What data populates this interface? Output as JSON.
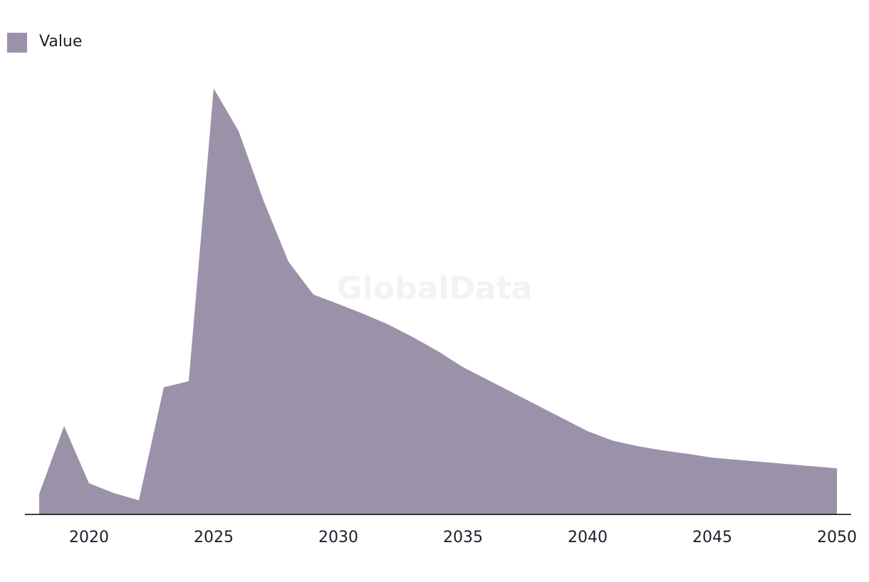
{
  "chart_data": {
    "type": "area",
    "watermark": "GlobalData",
    "x": [
      2018,
      2019,
      2020,
      2021,
      2022,
      2023,
      2024,
      2025,
      2026,
      2027,
      2028,
      2029,
      2030,
      2031,
      2032,
      2033,
      2034,
      2035,
      2036,
      2037,
      2038,
      2039,
      2040,
      2041,
      2042,
      2043,
      2044,
      2045,
      2046,
      2047,
      2048,
      2049,
      2050
    ],
    "series": [
      {
        "name": "Value",
        "color": "#9b92aa",
        "values": [
          4.8,
          20.7,
          7.3,
          5,
          3.3,
          29.8,
          31.2,
          99.8,
          89.8,
          73.5,
          59.2,
          51.5,
          49.3,
          47,
          44.5,
          41.5,
          38.2,
          34.5,
          31.5,
          28.5,
          25.5,
          22.5,
          19.5,
          17.3,
          16,
          15,
          14.2,
          13.3,
          12.8,
          12.3,
          11.8,
          11.3,
          10.8
        ]
      }
    ],
    "xlim": [
      2017.43,
      2050.57
    ],
    "xticks": [
      2020,
      2025,
      2030,
      2035,
      2040,
      2045,
      2050
    ],
    "ylim": [
      0,
      100
    ],
    "legend": "top-left"
  }
}
